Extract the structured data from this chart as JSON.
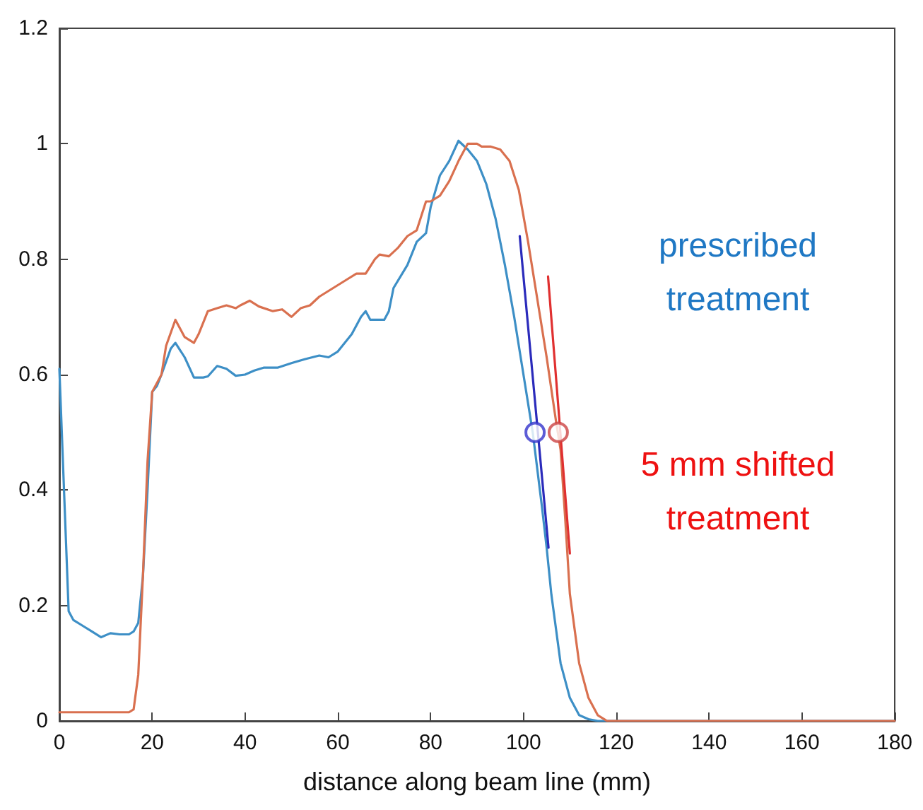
{
  "chart_data": {
    "type": "line",
    "xlabel": "distance along beam line (mm)",
    "xlim": [
      0,
      180
    ],
    "xticks": [
      0,
      20,
      40,
      60,
      80,
      100,
      120,
      140,
      160,
      180
    ],
    "ylim": [
      0,
      1.2
    ],
    "yticks": [
      0,
      0.2,
      0.4,
      0.6,
      0.8,
      1,
      1.2
    ],
    "grid": false,
    "marker": "none",
    "line_style": "solid",
    "annotations": [
      "prescribed treatment",
      "5 mm shifted treatment"
    ],
    "series": [
      {
        "color": "#3d8fc6",
        "x": [
          0,
          1,
          2,
          3,
          5,
          7,
          9,
          11,
          13,
          15,
          16,
          17,
          18,
          19,
          20,
          21,
          22,
          24,
          25,
          27,
          29,
          31,
          32,
          34,
          36,
          38,
          40,
          42,
          44,
          47,
          50,
          53,
          56,
          58,
          60,
          63,
          65,
          66,
          67,
          70,
          71,
          72,
          75,
          77,
          79,
          80,
          82,
          84,
          86,
          88,
          90,
          92,
          94,
          96,
          98,
          100,
          102,
          104,
          105,
          106,
          108,
          110,
          112,
          114,
          116,
          180
        ],
        "values": [
          0.61,
          0.4,
          0.19,
          0.175,
          0.165,
          0.155,
          0.145,
          0.152,
          0.15,
          0.15,
          0.155,
          0.17,
          0.25,
          0.4,
          0.57,
          0.58,
          0.6,
          0.645,
          0.655,
          0.63,
          0.595,
          0.595,
          0.597,
          0.615,
          0.61,
          0.598,
          0.6,
          0.607,
          0.612,
          0.612,
          0.62,
          0.627,
          0.633,
          0.63,
          0.64,
          0.67,
          0.7,
          0.71,
          0.695,
          0.695,
          0.71,
          0.75,
          0.79,
          0.83,
          0.845,
          0.89,
          0.945,
          0.97,
          1.005,
          0.99,
          0.97,
          0.93,
          0.87,
          0.79,
          0.7,
          0.6,
          0.5,
          0.37,
          0.3,
          0.22,
          0.1,
          0.04,
          0.01,
          0.003,
          0,
          0
        ]
      },
      {
        "color": "#d9704f",
        "x": [
          0,
          15,
          16,
          17,
          18,
          19,
          20,
          22,
          23,
          25,
          27,
          29,
          30,
          32,
          34,
          36,
          38,
          39,
          41,
          43,
          46,
          48,
          50,
          52,
          54,
          56,
          59,
          62,
          64,
          66,
          68,
          69,
          71,
          73,
          75,
          77,
          79,
          80,
          82,
          84,
          86,
          88,
          90,
          91,
          93,
          95,
          97,
          99,
          101,
          103,
          105,
          107,
          108,
          109,
          110,
          112,
          114,
          116,
          118,
          180
        ],
        "values": [
          0.015,
          0.015,
          0.02,
          0.08,
          0.25,
          0.45,
          0.57,
          0.6,
          0.65,
          0.695,
          0.665,
          0.655,
          0.67,
          0.71,
          0.715,
          0.72,
          0.715,
          0.72,
          0.728,
          0.718,
          0.71,
          0.713,
          0.7,
          0.715,
          0.72,
          0.735,
          0.75,
          0.765,
          0.775,
          0.775,
          0.8,
          0.808,
          0.805,
          0.82,
          0.84,
          0.85,
          0.9,
          0.9,
          0.91,
          0.935,
          0.97,
          1.0,
          1.0,
          0.995,
          0.995,
          0.99,
          0.97,
          0.92,
          0.83,
          0.73,
          0.63,
          0.52,
          0.47,
          0.35,
          0.22,
          0.1,
          0.04,
          0.01,
          0,
          0
        ]
      },
      {
        "color": "#2b2bbb",
        "x": [
          99.2,
          105.4
        ],
        "values": [
          0.84,
          0.3
        ]
      },
      {
        "color": "#e03030",
        "x": [
          105.3,
          110
        ],
        "values": [
          0.77,
          0.29
        ]
      },
      {
        "type": "scatter",
        "marker": "circle",
        "color": "#3333cc",
        "x": [
          102.5
        ],
        "values": [
          0.5
        ]
      },
      {
        "type": "scatter",
        "marker": "circle",
        "color": "#cc4444",
        "x": [
          107.5
        ],
        "values": [
          0.5
        ]
      }
    ]
  }
}
